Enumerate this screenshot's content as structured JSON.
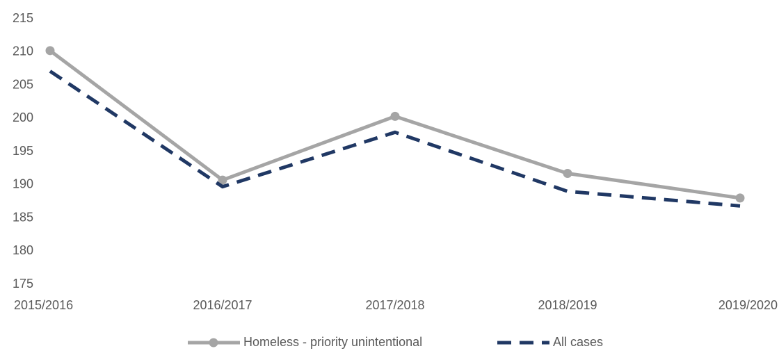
{
  "chart_data": {
    "type": "line",
    "categories": [
      "2015/2016",
      "2016/2017",
      "2017/2018",
      "2018/2019",
      "2019/2020"
    ],
    "series": [
      {
        "name": "Homeless - priority unintentional",
        "color": "#a5a5a5",
        "style": "solid",
        "marker": true,
        "values": [
          210.2,
          190.7,
          200.3,
          191.7,
          188.0
        ]
      },
      {
        "name": "All cases",
        "color": "#203864",
        "style": "dashed",
        "marker": false,
        "values": [
          207.1,
          189.7,
          197.9,
          189.0,
          186.8
        ]
      }
    ],
    "ylim": [
      175,
      215
    ],
    "yticks": [
      175,
      180,
      185,
      190,
      195,
      200,
      205,
      210,
      215
    ],
    "grid": false,
    "legend": "bottom"
  }
}
